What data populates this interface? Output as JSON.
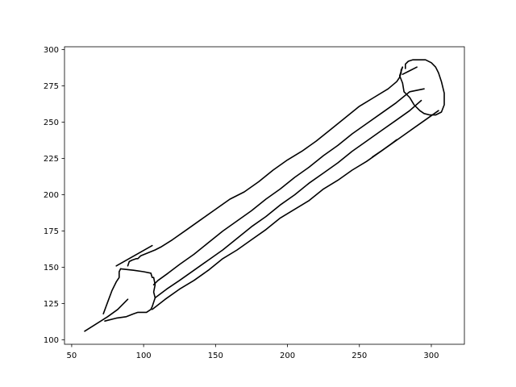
{
  "chart_data": {
    "type": "line",
    "title": "",
    "xlabel": "",
    "ylabel": "",
    "xlim": [
      45,
      323
    ],
    "ylim": [
      97,
      302
    ],
    "xticks": [
      50,
      100,
      150,
      200,
      250,
      300
    ],
    "yticks": [
      100,
      125,
      150,
      175,
      200,
      225,
      250,
      275,
      300
    ],
    "grid": false,
    "legend": "none",
    "line_color": "#000000",
    "series": [
      {
        "values": [
          [
            59,
            106
          ],
          [
            75,
            116
          ],
          [
            82,
            121
          ],
          [
            87,
            126
          ],
          [
            89,
            128
          ]
        ]
      },
      {
        "values": [
          [
            72,
            118
          ],
          [
            75,
            126
          ],
          [
            78,
            134
          ],
          [
            81,
            140
          ],
          [
            83,
            143
          ],
          [
            83,
            147
          ],
          [
            84,
            149
          ]
        ]
      },
      {
        "values": [
          [
            84,
            149
          ],
          [
            93,
            148
          ],
          [
            100,
            147
          ],
          [
            105,
            146
          ],
          [
            106,
            143
          ],
          [
            107,
            143
          ],
          [
            108,
            138
          ],
          [
            107,
            133
          ],
          [
            108,
            129
          ],
          [
            106,
            123
          ],
          [
            105,
            121
          ],
          [
            102,
            119
          ],
          [
            99,
            119
          ],
          [
            96,
            119
          ],
          [
            93,
            118
          ],
          [
            88,
            116
          ],
          [
            81,
            115
          ],
          [
            73,
            113
          ]
        ]
      },
      {
        "values": [
          [
            81,
            151
          ],
          [
            106,
            165
          ]
        ]
      },
      {
        "values": [
          [
            89,
            151
          ],
          [
            90,
            154
          ],
          [
            92,
            155
          ],
          [
            95,
            156
          ],
          [
            96,
            156
          ],
          [
            98,
            158
          ],
          [
            103,
            160
          ],
          [
            108,
            162
          ],
          [
            112,
            164
          ],
          [
            120,
            169
          ],
          [
            130,
            176
          ],
          [
            140,
            183
          ],
          [
            150,
            190
          ],
          [
            160,
            197
          ],
          [
            170,
            202
          ],
          [
            180,
            209
          ],
          [
            190,
            217
          ],
          [
            200,
            224
          ],
          [
            210,
            230
          ],
          [
            220,
            237
          ],
          [
            230,
            245
          ],
          [
            240,
            253
          ],
          [
            250,
            261
          ],
          [
            260,
            267
          ],
          [
            270,
            273
          ],
          [
            276,
            278
          ],
          [
            278,
            281
          ],
          [
            279,
            284
          ],
          [
            279,
            286
          ],
          [
            280,
            288
          ]
        ]
      },
      {
        "values": [
          [
            107,
            138
          ],
          [
            110,
            141
          ],
          [
            117,
            146
          ],
          [
            125,
            152
          ],
          [
            135,
            159
          ],
          [
            145,
            167
          ],
          [
            155,
            175
          ],
          [
            165,
            182
          ],
          [
            175,
            189
          ],
          [
            185,
            197
          ],
          [
            195,
            204
          ],
          [
            205,
            212
          ],
          [
            215,
            219
          ],
          [
            225,
            227
          ],
          [
            235,
            234
          ],
          [
            245,
            242
          ],
          [
            255,
            249
          ],
          [
            265,
            256
          ],
          [
            275,
            263
          ],
          [
            285,
            271
          ],
          [
            295,
            273
          ]
        ]
      },
      {
        "values": [
          [
            108,
            129
          ],
          [
            116,
            135
          ],
          [
            125,
            141
          ],
          [
            135,
            148
          ],
          [
            145,
            155
          ],
          [
            155,
            162
          ],
          [
            165,
            170
          ],
          [
            175,
            178
          ],
          [
            185,
            185
          ],
          [
            195,
            193
          ],
          [
            205,
            200
          ],
          [
            215,
            208
          ],
          [
            225,
            215
          ],
          [
            235,
            222
          ],
          [
            245,
            230
          ],
          [
            255,
            237
          ],
          [
            265,
            244
          ],
          [
            275,
            251
          ],
          [
            285,
            258
          ],
          [
            293,
            265
          ]
        ]
      },
      {
        "values": [
          [
            106,
            121
          ],
          [
            115,
            128
          ],
          [
            125,
            135
          ],
          [
            135,
            141
          ],
          [
            145,
            148
          ],
          [
            155,
            156
          ],
          [
            165,
            162
          ],
          [
            175,
            169
          ],
          [
            185,
            176
          ],
          [
            195,
            184
          ],
          [
            205,
            190
          ],
          [
            215,
            196
          ],
          [
            225,
            204
          ],
          [
            235,
            210
          ],
          [
            245,
            217
          ],
          [
            255,
            223
          ],
          [
            265,
            230
          ],
          [
            275,
            237
          ],
          [
            285,
            244
          ],
          [
            295,
            251
          ],
          [
            305,
            258
          ]
        ]
      },
      {
        "values": [
          [
            259,
            226
          ],
          [
            265,
            230
          ],
          [
            272,
            235
          ],
          [
            276,
            238
          ]
        ]
      },
      {
        "values": [
          [
            280,
            288
          ],
          [
            278,
            282
          ],
          [
            280,
            277
          ],
          [
            281,
            271
          ],
          [
            285,
            267
          ],
          [
            288,
            262
          ],
          [
            292,
            258
          ],
          [
            295,
            256
          ],
          [
            299,
            255
          ],
          [
            303,
            255
          ],
          [
            307,
            257
          ],
          [
            309,
            262
          ],
          [
            309,
            270
          ],
          [
            307,
            278
          ],
          [
            305,
            284
          ],
          [
            303,
            288
          ],
          [
            300,
            291
          ],
          [
            296,
            293
          ],
          [
            292,
            293
          ],
          [
            287,
            293
          ],
          [
            284,
            292
          ],
          [
            282,
            290
          ],
          [
            282,
            287
          ]
        ]
      },
      {
        "values": [
          [
            280,
            283
          ],
          [
            290,
            288
          ]
        ]
      }
    ]
  }
}
